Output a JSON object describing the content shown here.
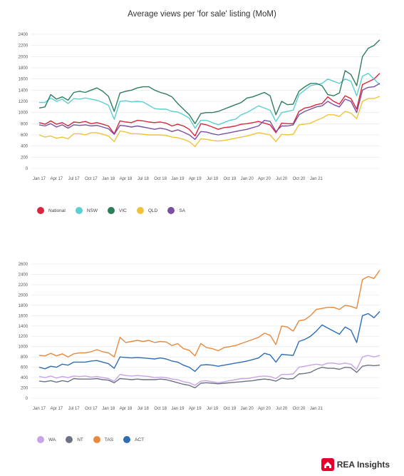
{
  "title": "Average views per 'for sale' listing (MoM)",
  "logo": {
    "text": "REA Insights",
    "color": "#e4002b"
  },
  "chart_data": [
    {
      "type": "line",
      "ylim": [
        0,
        2400
      ],
      "yticks": [
        "0",
        "200",
        "400",
        "600",
        "800",
        "1000",
        "1200",
        "1400",
        "1600",
        "1800",
        "2000",
        "2200",
        "2400"
      ],
      "xlabels": [
        "Jan 17",
        "Apr 17",
        "Jul 17",
        "Oct 17",
        "Jan 18",
        "Apr 18",
        "Jul 18",
        "Oct 18",
        "Jan 19",
        "Apr 19",
        "Jul 19",
        "Oct 19",
        "Jan 20",
        "Apr 20",
        "Jul 20",
        "Oct 20",
        "Jan 21"
      ],
      "legend": "bottom-left",
      "series": [
        {
          "name": "National",
          "color": "#d7263d",
          "values": [
            820,
            790,
            850,
            790,
            820,
            760,
            830,
            820,
            840,
            800,
            820,
            790,
            760,
            620,
            850,
            830,
            820,
            860,
            850,
            830,
            820,
            830,
            810,
            760,
            790,
            760,
            700,
            580,
            800,
            780,
            740,
            700,
            730,
            740,
            760,
            790,
            800,
            820,
            840,
            810,
            780,
            640,
            810,
            800,
            800,
            1020,
            1080,
            1100,
            1140,
            1160,
            1280,
            1200,
            1150,
            1300,
            1250,
            1060,
            1500,
            1550,
            1600,
            1700
          ]
        },
        {
          "name": "NSW",
          "color": "#5ccfd3",
          "values": [
            1180,
            1180,
            1260,
            1200,
            1240,
            1160,
            1250,
            1240,
            1260,
            1240,
            1220,
            1180,
            1130,
            880,
            1200,
            1210,
            1190,
            1200,
            1190,
            1130,
            1070,
            1060,
            1060,
            1020,
            1010,
            960,
            900,
            720,
            860,
            860,
            820,
            780,
            820,
            860,
            880,
            960,
            1000,
            1060,
            1120,
            1080,
            1040,
            840,
            1000,
            1020,
            1040,
            1320,
            1400,
            1480,
            1500,
            1520,
            1600,
            1560,
            1520,
            1600,
            1560,
            1300,
            1650,
            1700,
            1600,
            1500
          ]
        },
        {
          "name": "VIC",
          "color": "#2e7d5b",
          "values": [
            1080,
            1100,
            1320,
            1240,
            1280,
            1220,
            1360,
            1380,
            1360,
            1400,
            1440,
            1380,
            1290,
            1020,
            1350,
            1380,
            1400,
            1440,
            1460,
            1460,
            1400,
            1360,
            1330,
            1280,
            1160,
            1060,
            960,
            800,
            980,
            1000,
            1000,
            1020,
            1060,
            1100,
            1140,
            1180,
            1260,
            1280,
            1320,
            1360,
            1300,
            960,
            1200,
            1140,
            1150,
            1380,
            1460,
            1520,
            1520,
            1480,
            1320,
            1300,
            1350,
            1750,
            1680,
            1480,
            2000,
            2150,
            2200,
            2300
          ]
        },
        {
          "name": "QLD",
          "color": "#f0c23b",
          "values": [
            600,
            560,
            580,
            540,
            560,
            530,
            620,
            620,
            600,
            640,
            640,
            610,
            580,
            480,
            670,
            650,
            620,
            620,
            610,
            600,
            600,
            600,
            590,
            560,
            550,
            520,
            480,
            390,
            530,
            520,
            500,
            490,
            500,
            520,
            540,
            560,
            580,
            610,
            640,
            620,
            600,
            480,
            610,
            600,
            610,
            780,
            790,
            810,
            860,
            900,
            960,
            960,
            930,
            1020,
            990,
            890,
            1200,
            1250,
            1250,
            1290
          ]
        },
        {
          "name": "SA",
          "color": "#7b4fa0",
          "values": [
            780,
            760,
            800,
            740,
            780,
            720,
            780,
            770,
            780,
            760,
            770,
            740,
            710,
            610,
            770,
            760,
            740,
            760,
            740,
            720,
            700,
            720,
            700,
            660,
            690,
            650,
            600,
            520,
            660,
            650,
            620,
            600,
            620,
            640,
            660,
            680,
            700,
            730,
            760,
            860,
            840,
            660,
            760,
            760,
            780,
            960,
            1020,
            1060,
            1100,
            1120,
            1200,
            1140,
            1100,
            1240,
            1200,
            1000,
            1400,
            1450,
            1460,
            1520
          ]
        }
      ]
    },
    {
      "type": "line",
      "ylim": [
        0,
        2600
      ],
      "yticks": [
        "0",
        "200",
        "400",
        "600",
        "800",
        "1000",
        "1200",
        "1400",
        "1600",
        "1800",
        "2000",
        "2200",
        "2400",
        "2600"
      ],
      "xlabels": [
        "Jan 17",
        "Apr 17",
        "Jul 17",
        "Oct 17",
        "Jan 18",
        "Apr 18",
        "Jul 18",
        "Oct 18",
        "Jan 19",
        "Apr 19",
        "Jul 19",
        "Oct 19",
        "Jan 20",
        "Apr 20",
        "Jul 20",
        "Oct 20",
        "Jan 21"
      ],
      "legend": "bottom-left",
      "series": [
        {
          "name": "WA",
          "color": "#c7a3e8",
          "values": [
            420,
            400,
            430,
            390,
            420,
            400,
            430,
            420,
            430,
            410,
            420,
            400,
            380,
            330,
            460,
            440,
            430,
            440,
            430,
            420,
            400,
            410,
            400,
            370,
            360,
            320,
            300,
            250,
            330,
            340,
            320,
            300,
            320,
            340,
            360,
            380,
            380,
            400,
            420,
            430,
            420,
            380,
            460,
            460,
            470,
            600,
            620,
            640,
            660,
            640,
            680,
            680,
            660,
            680,
            660,
            560,
            800,
            830,
            800,
            830
          ]
        },
        {
          "name": "NT",
          "color": "#6c7382",
          "values": [
            330,
            320,
            340,
            310,
            340,
            320,
            380,
            370,
            370,
            370,
            380,
            360,
            350,
            300,
            380,
            370,
            360,
            370,
            360,
            360,
            360,
            370,
            360,
            330,
            300,
            270,
            250,
            200,
            290,
            300,
            290,
            280,
            290,
            300,
            310,
            320,
            330,
            340,
            360,
            370,
            360,
            330,
            390,
            370,
            380,
            470,
            480,
            500,
            560,
            600,
            580,
            580,
            560,
            600,
            590,
            500,
            620,
            640,
            630,
            640
          ]
        },
        {
          "name": "TAS",
          "color": "#e8893d",
          "values": [
            830,
            820,
            870,
            820,
            860,
            800,
            860,
            880,
            880,
            900,
            940,
            900,
            880,
            800,
            1180,
            1080,
            1100,
            1120,
            1100,
            1120,
            1080,
            1100,
            1090,
            1020,
            1060,
            960,
            930,
            820,
            1060,
            980,
            960,
            920,
            980,
            1000,
            1020,
            1060,
            1100,
            1140,
            1180,
            1260,
            1220,
            1040,
            1400,
            1380,
            1300,
            1500,
            1520,
            1600,
            1720,
            1740,
            1760,
            1760,
            1720,
            1800,
            1780,
            1740,
            2300,
            2360,
            2320,
            2480
          ]
        },
        {
          "name": "ACT",
          "color": "#2f6db5",
          "values": [
            600,
            570,
            620,
            600,
            660,
            640,
            700,
            700,
            700,
            720,
            730,
            700,
            670,
            580,
            800,
            790,
            780,
            790,
            780,
            770,
            760,
            780,
            760,
            720,
            700,
            640,
            600,
            520,
            640,
            650,
            640,
            620,
            640,
            660,
            680,
            700,
            720,
            750,
            780,
            870,
            840,
            700,
            850,
            840,
            830,
            1100,
            1140,
            1200,
            1300,
            1420,
            1360,
            1300,
            1240,
            1380,
            1320,
            1080,
            1600,
            1640,
            1560,
            1680
          ]
        }
      ]
    }
  ]
}
